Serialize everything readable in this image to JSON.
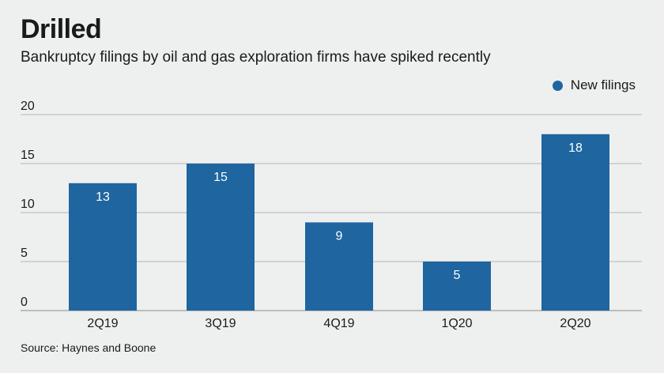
{
  "title": "Drilled",
  "subtitle": "Bankruptcy filings by oil and gas exploration firms have spiked recently",
  "source": "Source: Haynes and Boone",
  "colors": {
    "bar": "#1f65a0",
    "grid": "#b5b5b5",
    "bar_label": "#ffffff",
    "background": "#eef0ef"
  },
  "chart_data": {
    "type": "bar",
    "categories": [
      "2Q19",
      "3Q19",
      "4Q19",
      "1Q20",
      "2Q20"
    ],
    "series": [
      {
        "name": "New filings",
        "values": [
          13,
          15,
          9,
          5,
          18
        ]
      }
    ],
    "ylim": [
      0,
      20
    ],
    "yticks": [
      0,
      5,
      10,
      15,
      20
    ],
    "grid": true,
    "legend_position": "top-right",
    "data_labels": true
  }
}
